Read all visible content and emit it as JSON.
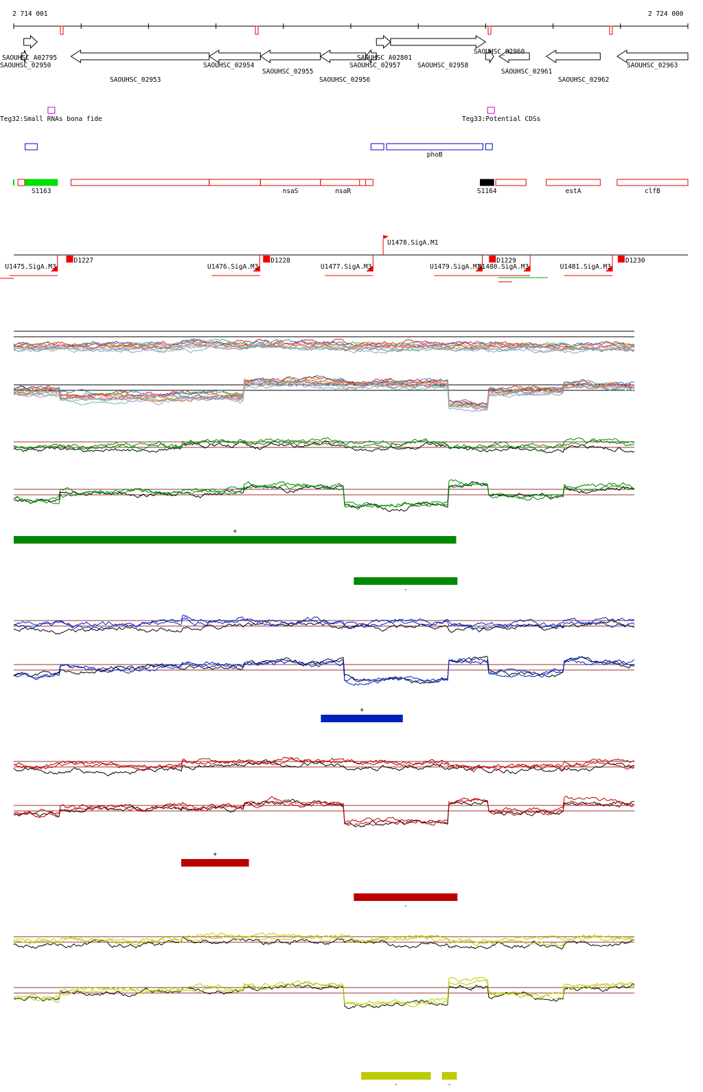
{
  "ruler": {
    "start_label": "2 714 001",
    "end_label": "2 724 000",
    "start": 2714001,
    "end": 2724000
  },
  "colors": {
    "gene_outline": "#000000",
    "marker_red": "#e00000",
    "teg_box": "#cc00cc",
    "blue_box": "#0000cc",
    "srna_fill": "#00dd00",
    "srna_black": "#000000",
    "promoter_red": "#ee0000",
    "green_track": "#008800",
    "blue_track": "#0022bb",
    "red_track": "#bb0000",
    "yellow_track": "#bbcc00",
    "ref_line": "#993333"
  },
  "genes": [
    {
      "name": "SAOUHSC_A02795",
      "strand": "+",
      "start": 2714150,
      "end": 2714350
    },
    {
      "name": "SAOUHSC_02950",
      "strand": "+",
      "start": 2714120,
      "end": 2714200
    },
    {
      "name": "SAOUHSC_02953",
      "strand": "-",
      "start": 2714850,
      "end": 2716900
    },
    {
      "name": "SAOUHSC_02954",
      "strand": "-",
      "start": 2716900,
      "end": 2717660
    },
    {
      "name": "SAOUHSC_02955",
      "strand": "-",
      "start": 2717660,
      "end": 2718550
    },
    {
      "name": "SAOUHSC_02956",
      "strand": "-",
      "start": 2718550,
      "end": 2719220
    },
    {
      "name": "SAOUHSC_A02801",
      "strand": "-",
      "start": 2719220,
      "end": 2719380
    },
    {
      "name": "SAOUHSC_02957",
      "strand": "+",
      "start": 2719380,
      "end": 2719590
    },
    {
      "name": "SAOUHSC_02958",
      "strand": "+",
      "start": 2719590,
      "end": 2721000
    },
    {
      "name": "SAOUHSC_02960",
      "strand": "+",
      "start": 2721000,
      "end": 2721120
    },
    {
      "name": "SAOUHSC_02961",
      "strand": "-",
      "start": 2721200,
      "end": 2721650
    },
    {
      "name": "SAOUHSC_02962",
      "strand": "-",
      "start": 2721900,
      "end": 2722700
    },
    {
      "name": "SAOUHSC_02963",
      "strand": "-",
      "start": 2722950,
      "end": 2724000
    }
  ],
  "teg": [
    {
      "label": "Teg32:Small RNAs bona fide",
      "pos": 2714560
    },
    {
      "label": "Teg33:Potential CDSs",
      "pos": 2721080
    }
  ],
  "blue_features": [
    {
      "label": "",
      "start": 2714170,
      "end": 2714350
    },
    {
      "label": "",
      "start": 2719300,
      "end": 2719490
    },
    {
      "label": "phoB",
      "start": 2719530,
      "end": 2720960
    },
    {
      "label": "",
      "start": 2721000,
      "end": 2721100
    }
  ],
  "rna_features": [
    {
      "label": "S1163",
      "start": 2714170,
      "end": 2714650,
      "kind": "srna"
    },
    {
      "label": "",
      "start": 2714850,
      "end": 2716900,
      "kind": "box"
    },
    {
      "label": "",
      "start": 2716900,
      "end": 2717660,
      "kind": "box"
    },
    {
      "label": "nsaS",
      "start": 2717660,
      "end": 2718550,
      "kind": "box"
    },
    {
      "label": "nsaR",
      "start": 2718550,
      "end": 2719220,
      "kind": "box"
    },
    {
      "label": "",
      "start": 2719130,
      "end": 2719330,
      "kind": "box"
    },
    {
      "label": "S1164",
      "start": 2720920,
      "end": 2721120,
      "kind": "black"
    },
    {
      "label": "",
      "start": 2721150,
      "end": 2721600,
      "kind": "box"
    },
    {
      "label": "estA",
      "start": 2721900,
      "end": 2722700,
      "kind": "box"
    },
    {
      "label": "clfB",
      "start": 2722950,
      "end": 2724000,
      "kind": "box"
    }
  ],
  "promoters": [
    {
      "label": "U1475.SigA.M3",
      "pos": 2714650
    },
    {
      "label": "D1227",
      "pos": 2714780
    },
    {
      "label": "U1476.SigA.M3",
      "pos": 2717650
    },
    {
      "label": "D1228",
      "pos": 2717700
    },
    {
      "label": "U1477.SigA.M3",
      "pos": 2719330
    },
    {
      "label": "U1478.SigA.M1",
      "pos": 2719480
    },
    {
      "label": "U1479.SigA.M3",
      "pos": 2720950
    },
    {
      "label": "D1229",
      "pos": 2721050
    },
    {
      "label": "U1480.SigA.M3",
      "pos": 2721660
    },
    {
      "label": "U1481.SigA.M3",
      "pos": 2722880
    },
    {
      "label": "D1230",
      "pos": 2722960
    }
  ],
  "condition_blocks": [
    {
      "color": "green",
      "segments": [
        {
          "strand": "+",
          "start": 2714001,
          "end": 2721130
        },
        {
          "strand": "-",
          "start": 2719480,
          "end": 2721150
        }
      ]
    },
    {
      "color": "blue",
      "segments": [
        {
          "strand": "+",
          "start": 2718950,
          "end": 2720270
        }
      ]
    },
    {
      "color": "red",
      "segments": [
        {
          "strand": "+",
          "start": 2716700,
          "end": 2717790
        },
        {
          "strand": "-",
          "start": 2719480,
          "end": 2721150
        }
      ]
    },
    {
      "color": "yellow",
      "segments": [
        {
          "strand": "-",
          "start": 2719600,
          "end": 2720720
        },
        {
          "strand": "-",
          "start": 2720900,
          "end": 2721140
        }
      ]
    }
  ]
}
